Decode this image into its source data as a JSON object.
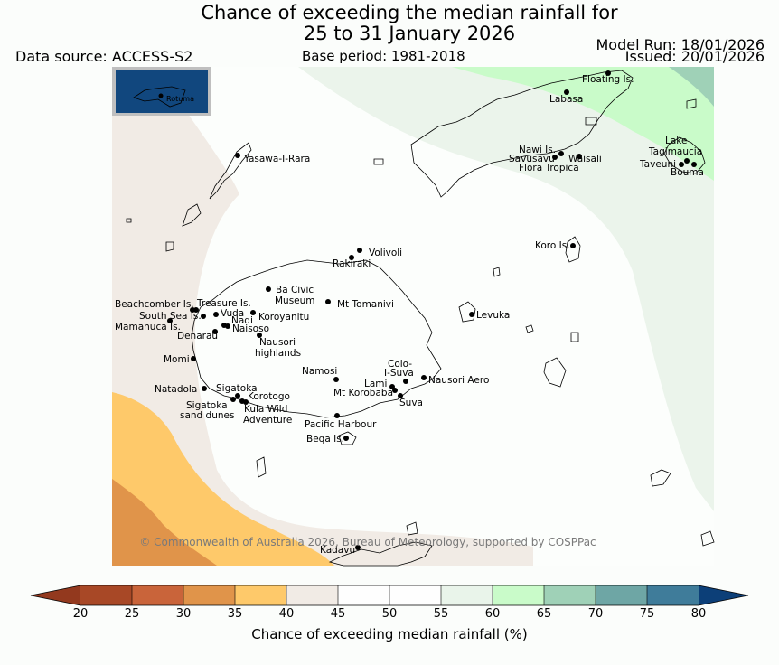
{
  "title": {
    "line1": "Chance of exceeding the median rainfall for",
    "line2": "25 to 31 January 2026"
  },
  "meta": {
    "data_source": "Data source: ACCESS-S2",
    "base_period": "Base period: 1981-2018",
    "model_run": "Model Run: 18/01/2026",
    "issued": "Issued: 20/01/2026"
  },
  "copyright": "© Commonwealth of Australia 2026, Bureau of Meteorology, supported by COSPPac",
  "inset": {
    "label": "Rotuma"
  },
  "places": [
    {
      "name": "Floating Is."
    },
    {
      "name": "Labasa"
    },
    {
      "name": "Yasawa-I-Rara"
    },
    {
      "name": "Nawi Is."
    },
    {
      "name": "Savusavu"
    },
    {
      "name": "Waisali"
    },
    {
      "name": "Flora Tropica"
    },
    {
      "name": "Lake"
    },
    {
      "name": "Tagimaucia"
    },
    {
      "name": "Taveuni"
    },
    {
      "name": "Bouma"
    },
    {
      "name": "Koro Is."
    },
    {
      "name": "Volivoli"
    },
    {
      "name": "Rakiraki"
    },
    {
      "name": "Ba Civic"
    },
    {
      "name": "Museum"
    },
    {
      "name": "Mt Tomanivi"
    },
    {
      "name": "Beachcomber Is."
    },
    {
      "name": "Treasure Is."
    },
    {
      "name": "South Sea Is."
    },
    {
      "name": "Vuda"
    },
    {
      "name": "Koroyanitu"
    },
    {
      "name": "Nadi"
    },
    {
      "name": "Mamanuca Is."
    },
    {
      "name": "Naisoso"
    },
    {
      "name": "Denarau"
    },
    {
      "name": "Nausori"
    },
    {
      "name": "highlands"
    },
    {
      "name": "Levuka"
    },
    {
      "name": "Momi"
    },
    {
      "name": "Colo-"
    },
    {
      "name": "I-Suva"
    },
    {
      "name": "Namosi"
    },
    {
      "name": "Nausori Aero"
    },
    {
      "name": "Lami"
    },
    {
      "name": "Natadola"
    },
    {
      "name": "Sigatoka"
    },
    {
      "name": "Mt Korobaba"
    },
    {
      "name": "Korotogo"
    },
    {
      "name": "Suva"
    },
    {
      "name": "Sigatoka"
    },
    {
      "name": "sand dunes"
    },
    {
      "name": "Kula Wild"
    },
    {
      "name": "Adventure"
    },
    {
      "name": "Pacific Harbour"
    },
    {
      "name": "Beqa Is."
    },
    {
      "name": "Kadavu"
    }
  ],
  "colorbar": {
    "label": "Chance of exceeding median rainfall (%)",
    "ticks": [
      "20",
      "25",
      "30",
      "35",
      "40",
      "45",
      "50",
      "55",
      "60",
      "65",
      "70",
      "75",
      "80"
    ],
    "colors": [
      "#a84826",
      "#c9643a",
      "#e0944a",
      "#fec96a",
      "#f1ebe5",
      "#fefefe",
      "#fefefe",
      "#e9f4ea",
      "#c9fbc9",
      "#9fd1b7",
      "#6ea6a5",
      "#3f7c9a",
      "#11477e"
    ],
    "under_color": "#93391e",
    "over_color": "#0c3f78"
  }
}
